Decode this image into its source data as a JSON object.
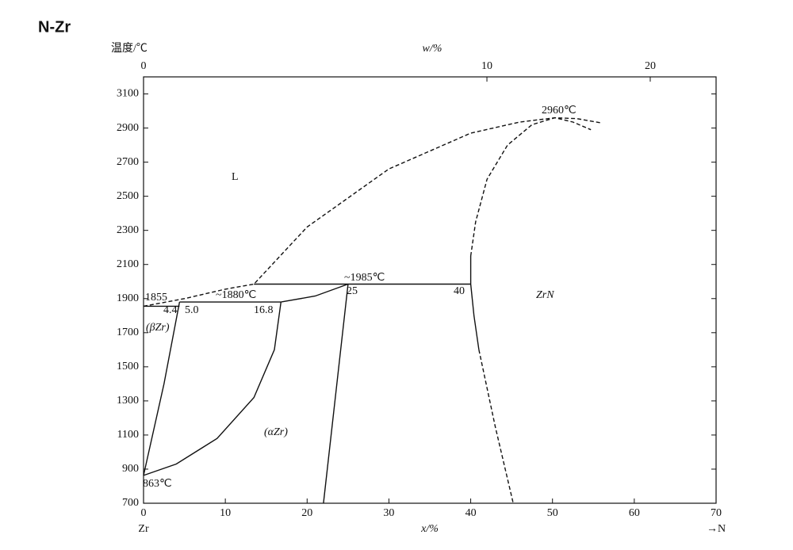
{
  "chart_data": {
    "type": "line",
    "title": "N-Zr",
    "y_label": "温度/℃",
    "x_label": "x/%",
    "x2_label": "w/%",
    "x_left_label": "Zr",
    "x_right_label": "→N",
    "xlim": [
      0,
      70
    ],
    "xticks": [
      0,
      10,
      20,
      30,
      40,
      50,
      60,
      70
    ],
    "ylim": [
      700,
      3200
    ],
    "yticks": [
      700,
      900,
      1100,
      1300,
      1500,
      1700,
      1900,
      2100,
      2300,
      2500,
      2700,
      2900,
      3100
    ],
    "x2ticks": [
      0,
      10,
      20
    ],
    "color": "#111111",
    "series": [
      {
        "x": [
          0,
          5,
          10,
          13.5,
          20,
          30,
          40,
          46,
          50.3,
          53,
          56
        ],
        "values": [
          1855,
          1900,
          1955,
          1985,
          2320,
          2660,
          2870,
          2935,
          2960,
          2955,
          2930
        ],
        "dashed": true
      },
      {
        "x": [
          40,
          40.6,
          42,
          44.5,
          47.5,
          50.3,
          52.5,
          54.7
        ],
        "values": [
          2150,
          2350,
          2600,
          2800,
          2920,
          2960,
          2935,
          2890
        ],
        "dashed": true
      },
      {
        "x": [
          40,
          40,
          40.4,
          41
        ],
        "values": [
          2150,
          1985,
          1800,
          1600
        ],
        "dashed": false
      },
      {
        "x": [
          41,
          43,
          45.2
        ],
        "values": [
          1600,
          1150,
          700
        ],
        "dashed": true
      },
      {
        "x": [
          13.5,
          40
        ],
        "values": [
          1985,
          1985
        ],
        "dashed": false
      },
      {
        "x": [
          0,
          4.4
        ],
        "values": [
          1855,
          1855
        ],
        "dashed": false
      },
      {
        "x": [
          4.4,
          16.8
        ],
        "values": [
          1880,
          1880
        ],
        "dashed": false
      },
      {
        "x": [
          16.8,
          21,
          25
        ],
        "values": [
          1880,
          1915,
          1985
        ],
        "dashed": false
      },
      {
        "x": [
          4.4,
          2.5,
          0
        ],
        "values": [
          1880,
          1400,
          863
        ],
        "dashed": false
      },
      {
        "x": [
          16.8,
          16,
          13.5,
          9,
          4,
          0
        ],
        "values": [
          1880,
          1600,
          1320,
          1080,
          930,
          863
        ],
        "dashed": false
      },
      {
        "x": [
          25,
          22
        ],
        "values": [
          1985,
          700
        ],
        "dashed": false
      }
    ],
    "annotations": [
      "2960℃",
      "L",
      "~1985℃",
      "1855",
      "~1880℃",
      "4.4",
      "5.0",
      "16.8",
      "25",
      "40",
      "ZrN",
      "(βZr)",
      "(αZr)",
      "863℃"
    ]
  }
}
